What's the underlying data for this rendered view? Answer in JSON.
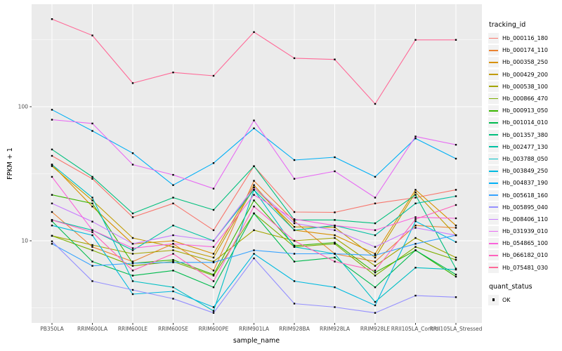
{
  "figure": {
    "background": "#FFFFFF",
    "panel_background": "#EBEBEB",
    "grid_color": "#FFFFFF",
    "axis_text_color": "#4D4D4D",
    "tick_mark_color": "#333333",
    "title_text_color": "#000000",
    "point_color": "#000000",
    "legend_key_background": "#F2F2F2"
  },
  "chart_data": {
    "type": "line",
    "title": "",
    "xlabel": "sample_name",
    "ylabel": "FPKM + 1",
    "y_scale": "log10",
    "ylim": [
      2.4,
      580
    ],
    "y_ticks": [
      10,
      100
    ],
    "y_minor_gridlines": [
      3.162,
      31.623,
      316.228
    ],
    "grid": true,
    "legend_position": "right",
    "legend_title": "tracking_id",
    "point_marker": "black-square",
    "categories": [
      "PB350LA",
      "RRIM600LA",
      "RRIM600LE",
      "RRIM600SE",
      "RRIM600PE",
      "RRIM901LA",
      "RRIM928BA",
      "RRIM928LA",
      "RRIM928LE",
      "RRII105LA_Control",
      "RRII105LA_Stressed"
    ],
    "series": [
      {
        "name": "Hb_000116_180",
        "color": "#F8766D",
        "values": [
          43,
          29,
          15,
          19,
          12,
          36,
          16.4,
          16.3,
          19,
          21,
          24
        ]
      },
      {
        "name": "Hb_000174_110",
        "color": "#EA8331",
        "values": [
          16.4,
          9,
          7,
          9.5,
          6,
          28,
          14,
          8,
          7,
          13,
          12.5
        ]
      },
      {
        "name": "Hb_000358_250",
        "color": "#D89000",
        "values": [
          37,
          18,
          9.5,
          10,
          8,
          26,
          12,
          11,
          8,
          24,
          13
        ]
      },
      {
        "name": "Hb_000429_200",
        "color": "#C09B00",
        "values": [
          36,
          20,
          10.5,
          9,
          7.5,
          25,
          12.7,
          12.6,
          7.5,
          23,
          11
        ]
      },
      {
        "name": "Hb_000538_100",
        "color": "#A3A500",
        "values": [
          10.9,
          9.3,
          8,
          8.5,
          7,
          12,
          10,
          10.5,
          6.5,
          10.5,
          7.5
        ]
      },
      {
        "name": "Hb_000866_470",
        "color": "#7CAE00",
        "values": [
          10.9,
          8.5,
          6.5,
          7,
          5.5,
          16,
          9,
          9.5,
          5.5,
          9,
          7.2
        ]
      },
      {
        "name": "Hb_000913_050",
        "color": "#39B600",
        "values": [
          22,
          19,
          6.8,
          7.2,
          5.6,
          20,
          9.2,
          9.7,
          5.8,
          8.5,
          5.4
        ]
      },
      {
        "name": "Hb_001014_010",
        "color": "#00BB4E",
        "values": [
          14,
          7,
          5.5,
          6,
          4.5,
          16,
          7,
          7.5,
          4.5,
          8.5,
          5.6
        ]
      },
      {
        "name": "Hb_001357_380",
        "color": "#00BF7D",
        "values": [
          48,
          30,
          16,
          21,
          17,
          36,
          14.3,
          14.3,
          13.5,
          22,
          6.2
        ]
      },
      {
        "name": "Hb_002477_130",
        "color": "#00C1A3",
        "values": [
          14.3,
          12,
          8.5,
          13,
          10,
          24,
          12,
          13,
          11,
          19,
          21.5
        ]
      },
      {
        "name": "Hb_003788_050",
        "color": "#00BFC4",
        "values": [
          37,
          21,
          5,
          4.5,
          3,
          24,
          9,
          8,
          3.5,
          6.3,
          6.1
        ]
      },
      {
        "name": "Hb_003849_250",
        "color": "#00BAE0",
        "values": [
          13,
          11,
          4,
          4.2,
          3.2,
          8,
          5,
          4.5,
          3.3,
          14,
          9.8
        ]
      },
      {
        "name": "Hb_004837_190",
        "color": "#00B0F6",
        "values": [
          95,
          66,
          45,
          26,
          38,
          69,
          40,
          42,
          30,
          58,
          41
        ]
      },
      {
        "name": "Hb_005618_160",
        "color": "#35A2FF",
        "values": [
          9.5,
          6.5,
          6.8,
          6.9,
          6.9,
          8.5,
          8,
          8,
          7.8,
          9.5,
          11
        ]
      },
      {
        "name": "Hb_005895_040",
        "color": "#9590FF",
        "values": [
          9.9,
          5,
          4.3,
          3.7,
          2.9,
          7.4,
          3.4,
          3.2,
          2.9,
          3.9,
          3.8
        ]
      },
      {
        "name": "Hb_008406_110",
        "color": "#C77CFF",
        "values": [
          19,
          13.9,
          9.5,
          11,
          10,
          25,
          13.5,
          12,
          9,
          12.5,
          11
        ]
      },
      {
        "name": "Hb_031939_010",
        "color": "#E76BF3",
        "values": [
          80,
          75,
          37,
          31,
          24.5,
          79,
          29,
          33,
          21,
          60,
          52
        ]
      },
      {
        "name": "Hb_054865_100",
        "color": "#FA62DB",
        "values": [
          30,
          12,
          8.8,
          9.5,
          9,
          22,
          14.5,
          13,
          12,
          15,
          14.7
        ]
      },
      {
        "name": "Hb_066182_010",
        "color": "#FF62BC",
        "values": [
          14.3,
          11.6,
          6,
          8,
          5,
          18,
          10,
          7,
          6,
          14.5,
          18.5
        ]
      },
      {
        "name": "Hb_075481_030",
        "color": "#FF6A98",
        "values": [
          450,
          340,
          150,
          180,
          170,
          360,
          230,
          225,
          105,
          315,
          315
        ]
      }
    ]
  },
  "quant_legend": {
    "title": "quant_status",
    "items": [
      {
        "label": "OK",
        "marker": "black-square"
      }
    ]
  }
}
